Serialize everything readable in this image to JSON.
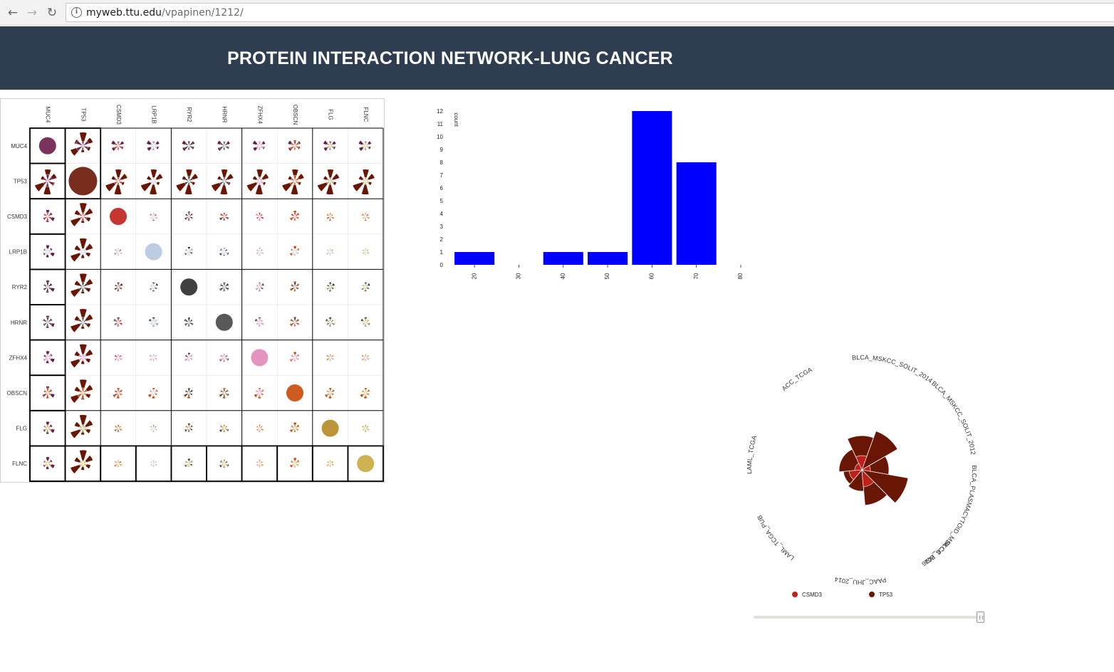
{
  "browser": {
    "url_host": "myweb.ttu.edu",
    "url_path": "/vpapinen/1212/",
    "back_label": "←",
    "forward_label": "→",
    "reload_label": "↻",
    "info_label": "i"
  },
  "header": {
    "title": "PROTEIN INTERACTION NETWORK-LUNG CANCER",
    "background": "#2e3e50"
  },
  "matrix": {
    "genes": [
      "MUC4",
      "TP53",
      "CSMD3",
      "LRP1B",
      "RYR2",
      "HRNR",
      "ZFHX4",
      "OBSCN",
      "FLG",
      "FLNC"
    ],
    "gene_colors": {
      "MUC4": "#6b1e4a",
      "TP53": "#6a1604",
      "CSMD3": "#c0201a",
      "LRP1B": "#b7c6de",
      "RYR2": "#2b2b2b",
      "HRNR": "#474747",
      "ZFHX4": "#e088b8",
      "OBSCN": "#c84a08",
      "FLG": "#b58925",
      "FLNC": "#c9aa3f"
    }
  },
  "chart_data": {
    "type": "bar",
    "ylabel": "count",
    "xlim": [
      15,
      80
    ],
    "ylim": [
      0,
      12
    ],
    "x_ticks": [
      20,
      30,
      40,
      50,
      60,
      70,
      80
    ],
    "y_ticks": [
      0,
      1,
      2,
      3,
      4,
      5,
      6,
      7,
      8,
      9,
      10,
      11,
      12
    ],
    "bars": [
      {
        "x": 20,
        "value": 1
      },
      {
        "x": 40,
        "value": 1
      },
      {
        "x": 50,
        "value": 1
      },
      {
        "x": 60,
        "value": 12
      },
      {
        "x": 70,
        "value": 8
      }
    ],
    "bar_color": "#0000ff",
    "grid": false
  },
  "radial": {
    "labels": [
      "ACC_TCGA",
      "BLCA_MSKCC_SOLIT_2014",
      "BLCA_MSKCC_SOLIT_2012",
      "BLCA_PLASMACYTOID_MSKCC_2016",
      "BLCA_BGI",
      "PAAC_JHU_2014",
      "LAML_TCGA_PUB",
      "LAML_TCGA"
    ],
    "legend": [
      {
        "name": "CSMD3",
        "color": "#c0201a"
      },
      {
        "name": "TP53",
        "color": "#6a1604"
      }
    ]
  },
  "slider": {
    "value_fraction": 1.0
  }
}
